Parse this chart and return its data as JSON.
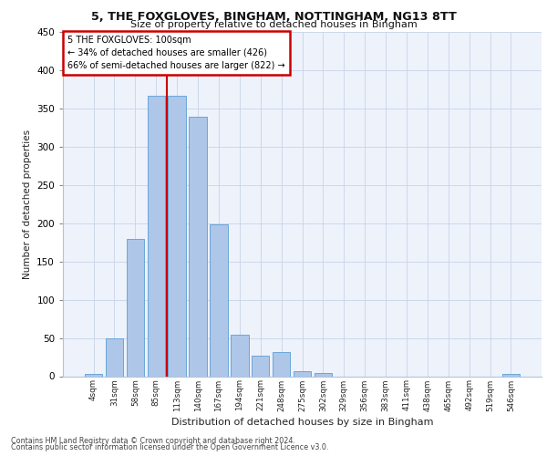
{
  "title1": "5, THE FOXGLOVES, BINGHAM, NOTTINGHAM, NG13 8TT",
  "title2": "Size of property relative to detached houses in Bingham",
  "xlabel": "Distribution of detached houses by size in Bingham",
  "ylabel": "Number of detached properties",
  "bar_labels": [
    "4sqm",
    "31sqm",
    "58sqm",
    "85sqm",
    "113sqm",
    "140sqm",
    "167sqm",
    "194sqm",
    "221sqm",
    "248sqm",
    "275sqm",
    "302sqm",
    "329sqm",
    "356sqm",
    "383sqm",
    "411sqm",
    "438sqm",
    "465sqm",
    "492sqm",
    "519sqm",
    "546sqm"
  ],
  "bar_values": [
    3,
    49,
    179,
    367,
    366,
    339,
    199,
    54,
    27,
    32,
    6,
    4,
    0,
    0,
    0,
    0,
    0,
    0,
    0,
    0,
    3
  ],
  "bar_color": "#aec6e8",
  "bar_edge_color": "#5a9fd4",
  "annotation_title": "5 THE FOXGLOVES: 100sqm",
  "annotation_line1": "← 34% of detached houses are smaller (426)",
  "annotation_line2": "66% of semi-detached houses are larger (822) →",
  "vline_color": "#cc0000",
  "box_edge_color": "#cc0000",
  "footer1": "Contains HM Land Registry data © Crown copyright and database right 2024.",
  "footer2": "Contains public sector information licensed under the Open Government Licence v3.0.",
  "bg_color": "#eef2fb",
  "grid_color": "#c8d4e8",
  "ylim": [
    0,
    450
  ],
  "yticks": [
    0,
    50,
    100,
    150,
    200,
    250,
    300,
    350,
    400,
    450
  ],
  "vline_x": 3.5
}
